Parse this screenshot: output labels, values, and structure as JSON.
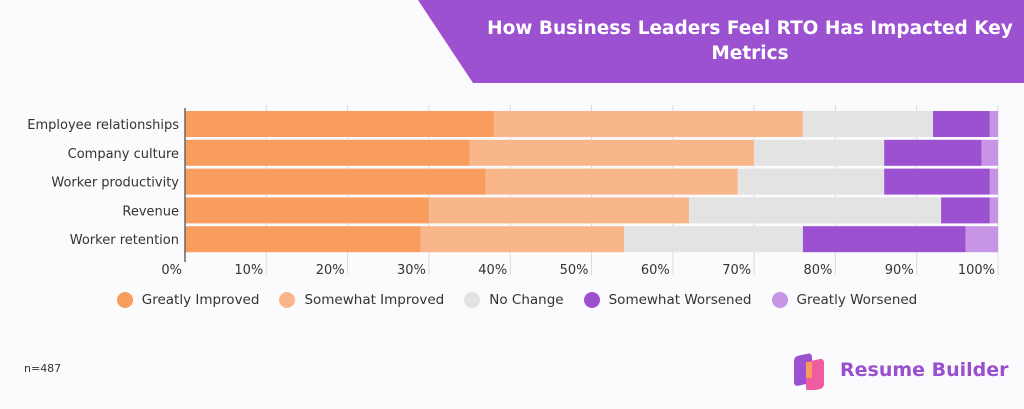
{
  "chart_data": {
    "type": "bar",
    "orientation": "horizontal",
    "stacked": true,
    "title": "How Business Leaders Feel RTO Has Impacted Key Metrics",
    "categories": [
      "Employee relationships",
      "Company culture",
      "Worker productivity",
      "Revenue",
      "Worker retention"
    ],
    "series": [
      {
        "name": "Greatly Improved",
        "color": "#f99d5f",
        "values": [
          38,
          35,
          37,
          30,
          29
        ]
      },
      {
        "name": "Somewhat Improved",
        "color": "#f9b68b",
        "values": [
          38,
          35,
          31,
          32,
          25
        ]
      },
      {
        "name": "No Change",
        "color": "#e3e3e3",
        "values": [
          16,
          16,
          18,
          31,
          22
        ]
      },
      {
        "name": "Somewhat Worsened",
        "color": "#9c51d0",
        "values": [
          7,
          12,
          13,
          6,
          20
        ]
      },
      {
        "name": "Greatly Worsened",
        "color": "#c894e6",
        "values": [
          1,
          2,
          1,
          1,
          4
        ]
      }
    ],
    "xlim": [
      0,
      100
    ],
    "xticks": [
      "0%",
      "10%",
      "20%",
      "30%",
      "40%",
      "50%",
      "60%",
      "70%",
      "80%",
      "90%",
      "100%"
    ],
    "grid": true,
    "legend": "bottom"
  },
  "note": "n=487",
  "brand": "Resume Builder",
  "colors": {
    "banner": "#9c51d0"
  }
}
